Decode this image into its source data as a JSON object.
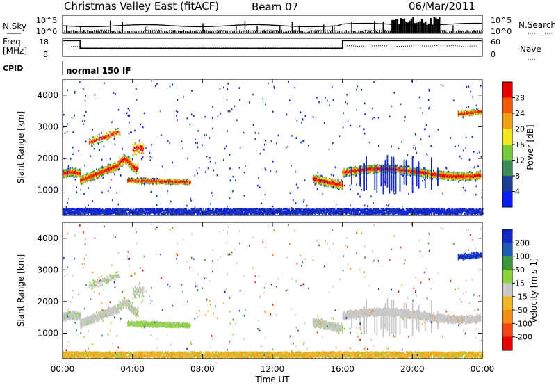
{
  "header": {
    "title": "Christmas Valley East (fitACF)",
    "beam": "Beam 07",
    "date": "06/Mar/2011"
  },
  "nsky_panel": {
    "label": "N.Sky",
    "right_label": "N.Search",
    "ytick_top": "10^5",
    "ytick_bottom": "10^0"
  },
  "freq_panel": {
    "label_line1": "Freq.",
    "label_line2": "[MHz]",
    "ytick_top": "18",
    "ytick_bottom": "8",
    "right_label": "Nave",
    "right_tick_top": "60",
    "right_tick_bottom": "0"
  },
  "cpid_panel": {
    "label": "CPID",
    "text": "normal 150 IF"
  },
  "chart_data": [
    {
      "type": "heatmap",
      "name": "power",
      "ylabel": "Slant Range [km]",
      "xlabel": "",
      "colorbar_label": "Power [dB]",
      "colorbar_ticks": [
        "4",
        "8",
        "12",
        "16",
        "20",
        "24",
        "28"
      ],
      "colorbar_colors": [
        "#0a1cf0",
        "#1e3c96",
        "#3c8c5a",
        "#78c83c",
        "#f0e61e",
        "#f0a014",
        "#f05a0a",
        "#e60000"
      ],
      "yticks": [
        1000,
        2000,
        3000,
        4000
      ],
      "ylim": [
        200,
        4500
      ],
      "xlim": [
        0,
        24
      ]
    },
    {
      "type": "heatmap",
      "name": "velocity",
      "ylabel": "Slant Range [km]",
      "xlabel": "Time UT",
      "colorbar_label": "Velocity [m s-1]",
      "colorbar_ticks": [
        "200",
        "100",
        "50",
        "15",
        "-15",
        "-50",
        "-100",
        "-200"
      ],
      "colorbar_colors": [
        "#1428c8",
        "#1e5ab4",
        "#3c963c",
        "#8cd23c",
        "#c8c8c8",
        "#f0b428",
        "#f08c14",
        "#f04614",
        "#e60000"
      ],
      "yticks": [
        1000,
        2000,
        3000,
        4000
      ],
      "ylim": [
        200,
        4500
      ],
      "xlim": [
        0,
        24
      ],
      "xticks": [
        "00:00",
        "04:00",
        "08:00",
        "12:00",
        "16:00",
        "20:00",
        "00:00"
      ]
    }
  ]
}
